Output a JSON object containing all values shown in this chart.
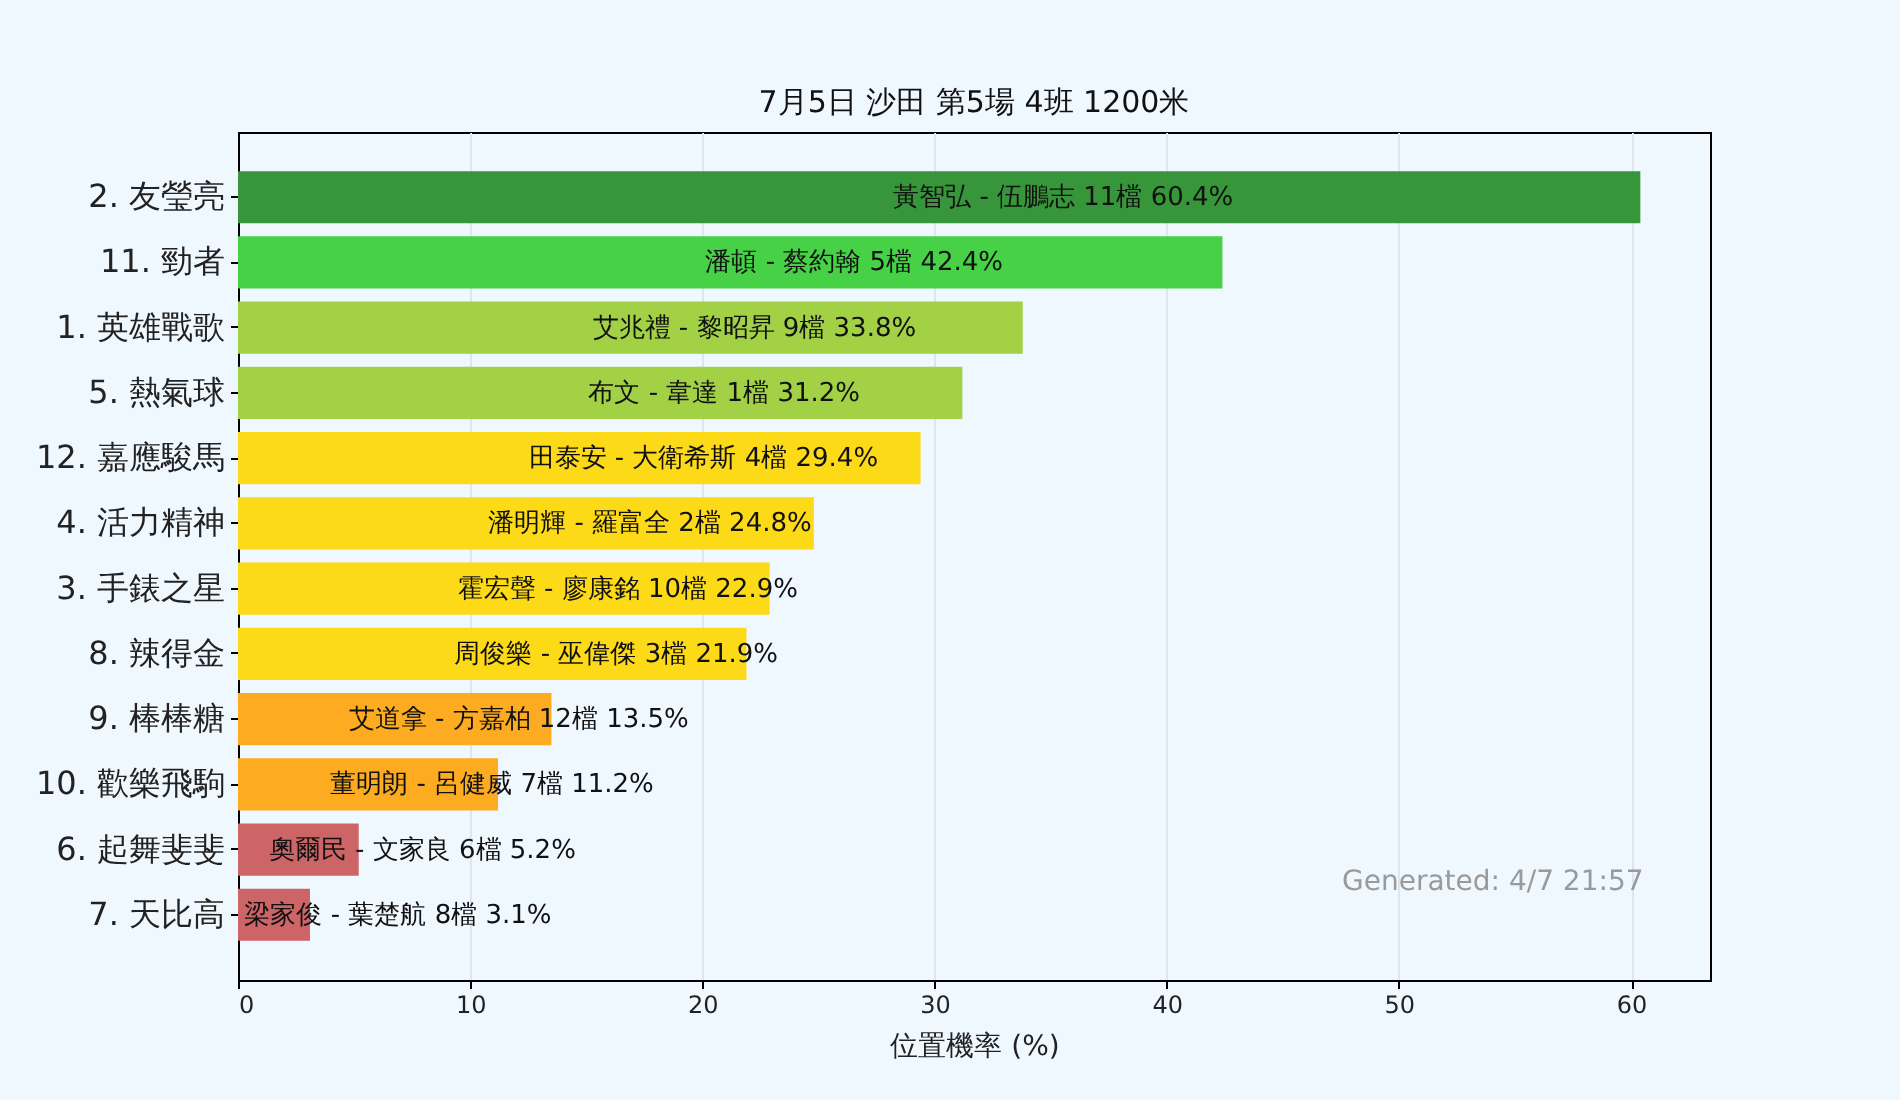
{
  "chart_data": {
    "type": "bar",
    "orientation": "horizontal",
    "title": "7月5日  沙田  第5場  4班  1200米",
    "xlabel": "位置機率 (%)",
    "categories": [
      "2. 友瑩亮",
      "11. 勁者",
      "1. 英雄戰歌",
      "5. 熱氣球",
      "12. 嘉應駿馬",
      "4. 活力精神",
      "3. 手錶之星",
      "8. 辣得金",
      "9. 棒棒糖",
      "10. 歡樂飛駒",
      "6. 起舞斐斐",
      "7. 天比高"
    ],
    "values": [
      60.4,
      42.4,
      33.8,
      31.2,
      29.4,
      24.8,
      22.9,
      21.9,
      13.5,
      11.2,
      5.2,
      3.1
    ],
    "colors": [
      "#37963a",
      "#46d146",
      "#a2d146",
      "#a2d146",
      "#fdda17",
      "#fdda17",
      "#fdda17",
      "#fdda17",
      "#fdab20",
      "#fdab20",
      "#cd6567",
      "#cd6567"
    ],
    "value_labels": [
      "黃智弘 - 伍鵬志 11檔  60.4%",
      "潘頓 - 蔡約翰 5檔  42.4%",
      "艾兆禮 - 黎昭昇 9檔  33.8%",
      "布文 - 韋達 1檔  31.2%",
      "田泰安 - 大衛希斯 4檔  29.4%",
      "潘明輝 - 羅富全 2檔  24.8%",
      "霍宏聲 - 廖康銘 10檔  22.9%",
      "周俊樂 - 巫偉傑 3檔  21.9%",
      "艾道拿 - 方嘉柏 12檔  13.5%",
      "董明朗 - 呂健威 7檔  11.2%",
      "奧爾民 - 文家良 6檔  5.2%",
      "梁家俊 - 葉楚航 8檔  3.1%"
    ],
    "xlim": [
      0,
      63.4
    ],
    "xticks": [
      0,
      10,
      20,
      30,
      40,
      50,
      60
    ],
    "grid": "x",
    "annotations": [
      "Generated: 4/7 21:57"
    ]
  }
}
